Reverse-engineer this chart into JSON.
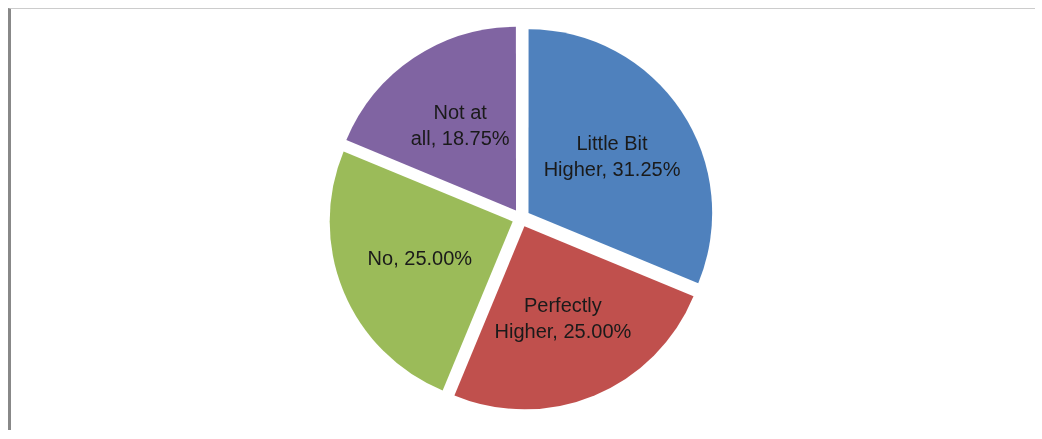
{
  "chart_data": {
    "type": "pie",
    "categories": [
      "Little Bit Higher",
      "Perfectly Higher",
      "No",
      "Not at all"
    ],
    "values": [
      31.25,
      25,
      25,
      18.75
    ],
    "value_labels": [
      "31.25%",
      "25.00%",
      "25.00%",
      "18.75%"
    ],
    "colors": [
      "#4f81bd",
      "#c0504d",
      "#9bbb59",
      "#8064a2"
    ],
    "legend": false
  }
}
